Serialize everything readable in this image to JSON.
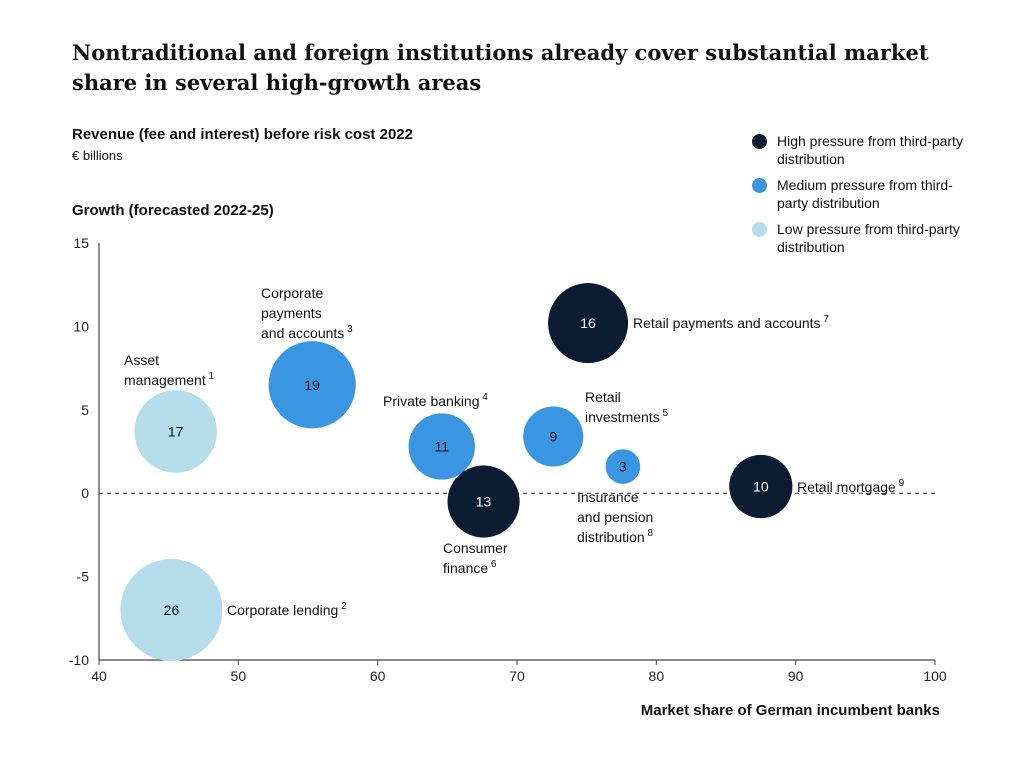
{
  "title": "Nontraditional and foreign institutions already cover substantial market share in several high-growth areas",
  "subtitle": "Revenue (fee and interest) before risk cost 2022",
  "unit": "€ billions",
  "colors": {
    "high": "#0b1c33",
    "medium": "#3a95e2",
    "low": "#b4dceb"
  },
  "legend": [
    {
      "key": "high",
      "label": "High pressure from third-party distribution"
    },
    {
      "key": "medium",
      "label": "Medium pressure from third-party distribution"
    },
    {
      "key": "low",
      "label": "Low pressure from third-party distribution"
    }
  ],
  "chart_data": {
    "type": "scatter",
    "xlabel": "Market share of German incumbent banks",
    "ylabel": "Growth (forecasted 2022-25)",
    "xlim": [
      40,
      100
    ],
    "ylim": [
      -10,
      15
    ],
    "xticks": [
      40,
      50,
      60,
      70,
      80,
      90,
      100
    ],
    "yticks": [
      -10,
      -5,
      0,
      5,
      10,
      15
    ],
    "reference_line_y": 0,
    "points": [
      {
        "label": [
          "Asset",
          "management"
        ],
        "sup": "1",
        "x": 45.5,
        "y": 3.7,
        "size": 17,
        "pressure": "low"
      },
      {
        "label": [
          "Corporate lending"
        ],
        "sup": "2",
        "x": 45.2,
        "y": -7.0,
        "size": 26,
        "pressure": "low"
      },
      {
        "label": [
          "Corporate",
          "payments",
          "and accounts"
        ],
        "sup": "3",
        "x": 55.3,
        "y": 6.5,
        "size": 19,
        "pressure": "medium"
      },
      {
        "label": [
          "Private banking"
        ],
        "sup": "4",
        "x": 64.6,
        "y": 2.8,
        "size": 11,
        "pressure": "medium"
      },
      {
        "label": [
          "Retail",
          "investments"
        ],
        "sup": "5",
        "x": 72.6,
        "y": 3.4,
        "size": 9,
        "pressure": "medium"
      },
      {
        "label": [
          "Consumer",
          "finance"
        ],
        "sup": "6",
        "x": 67.6,
        "y": -0.5,
        "size": 13,
        "pressure": "high"
      },
      {
        "label": [
          "Retail payments and accounts"
        ],
        "sup": "7",
        "x": 75.1,
        "y": 10.2,
        "size": 16,
        "pressure": "high"
      },
      {
        "label": [
          "Insurance",
          "and pension",
          "distribution"
        ],
        "sup": "8",
        "x": 77.6,
        "y": 1.6,
        "size": 3,
        "pressure": "medium"
      },
      {
        "label": [
          "Retail mortgage"
        ],
        "sup": "9",
        "x": 87.5,
        "y": 0.4,
        "size": 10,
        "pressure": "high"
      }
    ]
  }
}
